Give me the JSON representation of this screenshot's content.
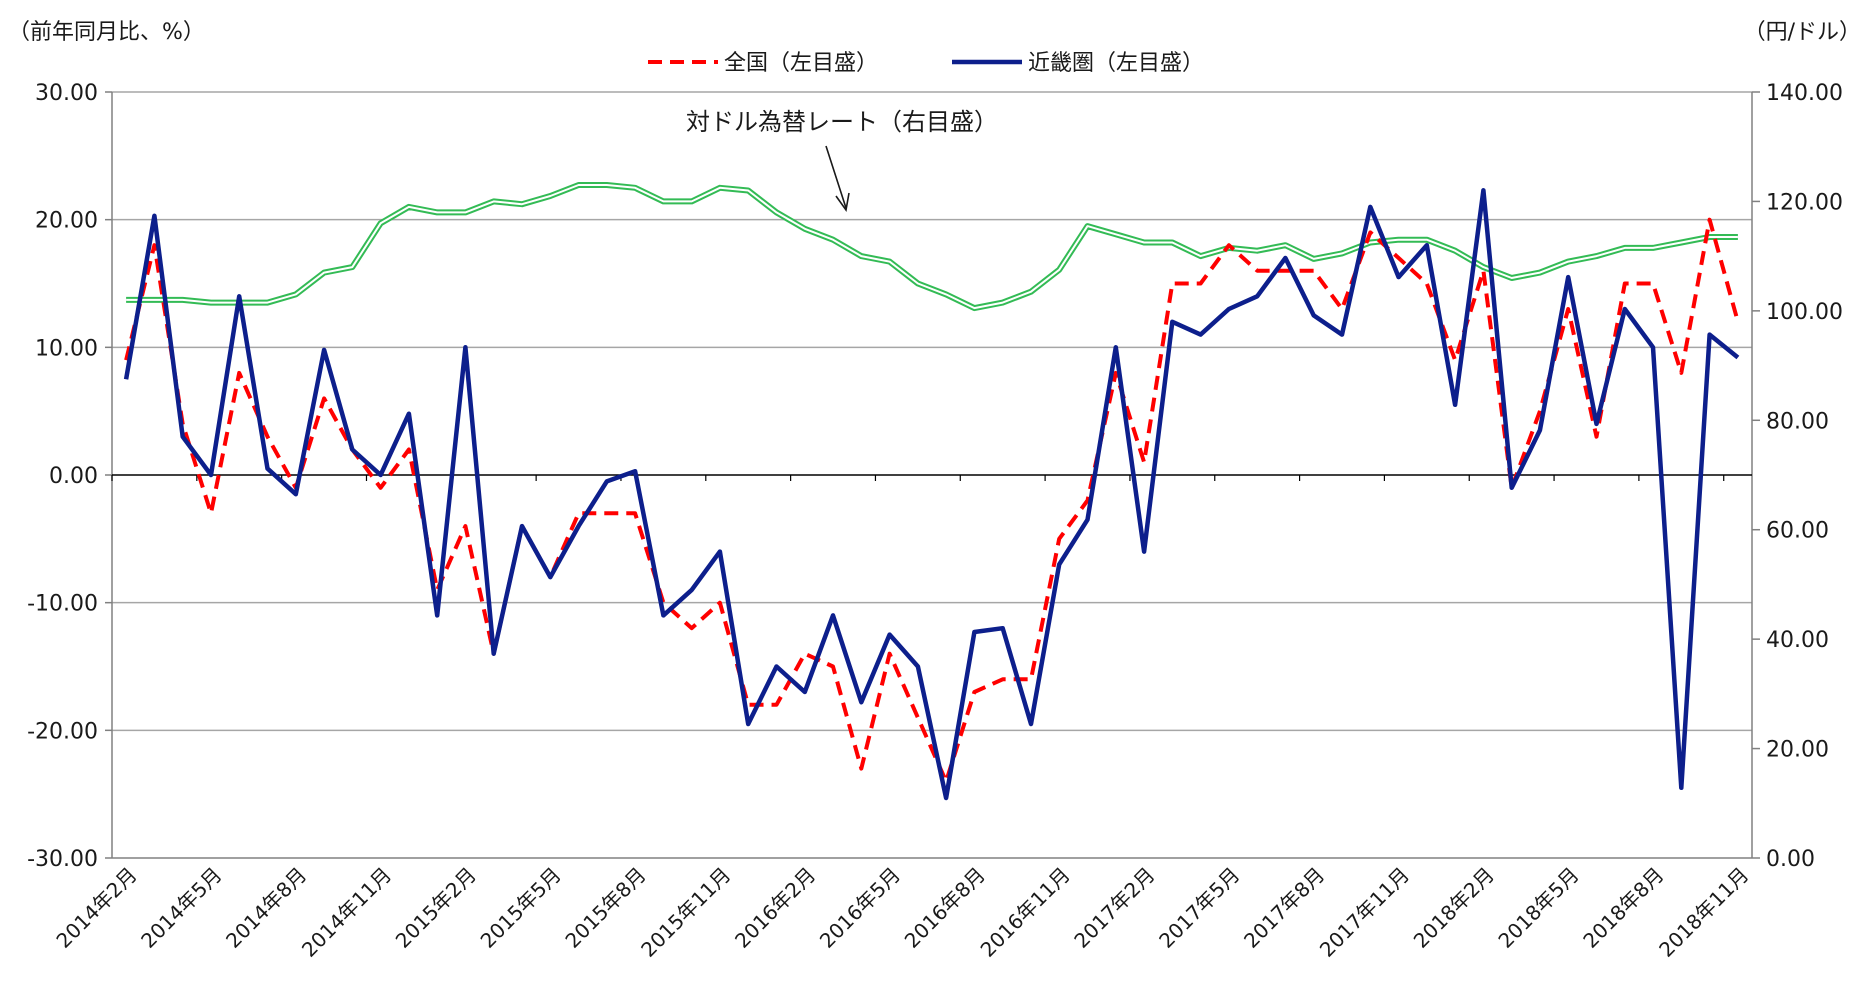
{
  "chart_data": {
    "type": "line",
    "title": "",
    "left_axis": {
      "unit_label": "（前年同月比、%）",
      "ylim": [
        -30,
        30
      ],
      "ticks": [
        "30.00",
        "20.00",
        "10.00",
        "0.00",
        "-10.00",
        "-20.00",
        "-30.00"
      ]
    },
    "right_axis": {
      "unit_label": "（円/ドル）",
      "ylim": [
        0,
        140
      ],
      "ticks": [
        "140.00",
        "120.00",
        "100.00",
        "80.00",
        "60.00",
        "40.00",
        "20.00",
        "0.00"
      ]
    },
    "x_tick_labels": [
      "2014年2月",
      "2014年5月",
      "2014年8月",
      "2014年11月",
      "2015年2月",
      "2015年5月",
      "2015年8月",
      "2015年11月",
      "2016年2月",
      "2016年5月",
      "2016年8月",
      "2016年11月",
      "2017年2月",
      "2017年5月",
      "2017年8月",
      "2017年11月",
      "2018年2月",
      "2018年5月",
      "2018年8月",
      "2018年11月"
    ],
    "x_start": "2014年2月",
    "grid": true,
    "legend_position": "top-center",
    "annotation": "対ドル為替レート（右目盛）",
    "series": [
      {
        "name": "全国（左目盛）",
        "axis": "left",
        "color": "#ff0000",
        "style": "dashed",
        "values": [
          9,
          18,
          4,
          -3,
          8,
          3,
          -1,
          6,
          2,
          -1,
          2,
          -9,
          -4,
          -14,
          -4,
          -8,
          -3,
          -3,
          -3,
          -10,
          -12,
          -10,
          -18,
          -18,
          -14,
          -15,
          -23,
          -14,
          -19,
          -24,
          -17,
          -16,
          -16,
          -5,
          -2,
          8,
          1,
          15,
          15,
          18,
          16,
          16,
          16,
          13,
          19,
          17,
          15,
          9,
          16,
          -1,
          5,
          13,
          3,
          15,
          15,
          8,
          20,
          12
        ]
      },
      {
        "name": "近畿圏（左目盛）",
        "axis": "left",
        "color": "#0d1f8c",
        "style": "solid",
        "values": [
          7.5,
          20.3,
          3,
          0,
          14,
          0.5,
          -1.5,
          9.8,
          2,
          0,
          4.8,
          -11,
          10,
          -14,
          -4,
          -8,
          -4,
          -0.5,
          0.3,
          -11,
          -9,
          -6,
          -19.5,
          -15,
          -17,
          -11,
          -17.8,
          -12.5,
          -15,
          -25.3,
          -12.3,
          -12,
          -19.5,
          -7,
          -3.5,
          10,
          -6,
          12,
          11,
          13,
          14,
          17,
          12.5,
          11,
          21,
          15.5,
          18,
          5.5,
          22.3,
          -1,
          3.5,
          15.5,
          4,
          13,
          10,
          -24.5,
          11,
          9.2
        ]
      },
      {
        "name": "対ドル為替レート（右目盛）",
        "axis": "right",
        "color": "#33bb55",
        "style": "double",
        "values": [
          102,
          102,
          102,
          101.5,
          101.5,
          101.5,
          103,
          107,
          108,
          116,
          119,
          118,
          118,
          120,
          119.5,
          121,
          123,
          123,
          122.5,
          120,
          120,
          122.5,
          122,
          118,
          115,
          113,
          110,
          109,
          105,
          103,
          100.5,
          101.5,
          103.5,
          107.5,
          115.5,
          114,
          112.5,
          112.5,
          110,
          111.5,
          111,
          112,
          109.5,
          110.5,
          112.5,
          113,
          113,
          111,
          108,
          106,
          107,
          109,
          110,
          111.5,
          111.5,
          112.5,
          113.5,
          113.5
        ]
      }
    ]
  }
}
